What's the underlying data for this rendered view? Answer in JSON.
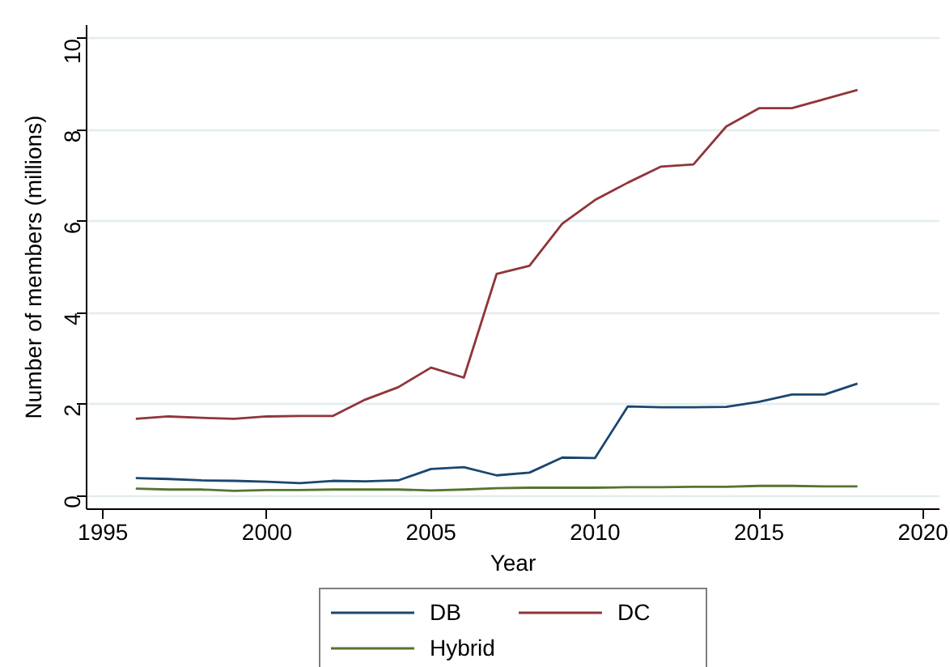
{
  "chart_data": {
    "type": "line",
    "xlabel": "Year",
    "ylabel": "Number of members (millions)",
    "xlim": [
      1994.5,
      2020.5
    ],
    "ylim": [
      -0.3,
      10.3
    ],
    "xticks": [
      1995,
      2000,
      2005,
      2010,
      2015,
      2020
    ],
    "yticks": [
      0,
      2,
      4,
      6,
      8,
      10
    ],
    "x": [
      1996,
      1997,
      1998,
      1999,
      2000,
      2001,
      2002,
      2003,
      2004,
      2005,
      2006,
      2007,
      2008,
      2009,
      2010,
      2011,
      2012,
      2013,
      2014,
      2015,
      2016,
      2017,
      2018
    ],
    "series": [
      {
        "name": "DB",
        "color": "#1a476f",
        "values": [
          0.38,
          0.36,
          0.33,
          0.32,
          0.3,
          0.27,
          0.32,
          0.31,
          0.33,
          0.58,
          0.62,
          0.44,
          0.5,
          0.83,
          0.82,
          1.95,
          1.93,
          1.93,
          1.94,
          2.05,
          2.21,
          2.21,
          2.45
        ]
      },
      {
        "name": "DC",
        "color": "#90353b",
        "values": [
          1.68,
          1.73,
          1.7,
          1.68,
          1.73,
          1.74,
          1.74,
          2.1,
          2.37,
          2.8,
          2.58,
          4.85,
          5.03,
          5.95,
          6.47,
          6.85,
          7.2,
          7.25,
          8.08,
          8.48,
          8.48,
          8.68,
          8.88
        ]
      },
      {
        "name": "Hybrid",
        "color": "#55752f",
        "values": [
          0.15,
          0.13,
          0.13,
          0.1,
          0.12,
          0.12,
          0.13,
          0.13,
          0.13,
          0.11,
          0.13,
          0.16,
          0.17,
          0.17,
          0.17,
          0.18,
          0.18,
          0.19,
          0.19,
          0.21,
          0.21,
          0.2,
          0.2
        ]
      }
    ],
    "grid": "y",
    "legend": "bottom"
  }
}
